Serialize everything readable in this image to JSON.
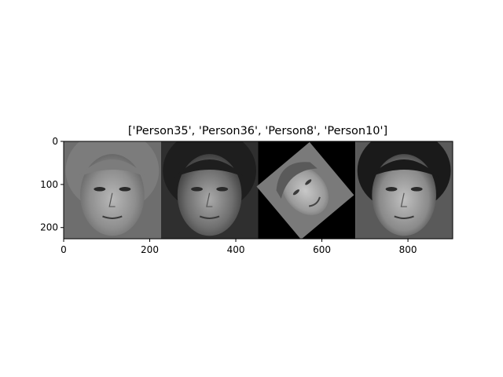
{
  "chart_data": {
    "type": "image_grid",
    "title": "['Person35', 'Person36', 'Person8', 'Person10']",
    "images": [
      {
        "label": "Person35",
        "x_range": [
          0,
          226
        ],
        "tone": "light-gray portrait, curly hair"
      },
      {
        "label": "Person36",
        "x_range": [
          226,
          452
        ],
        "tone": "dark-gray portrait, short hair"
      },
      {
        "label": "Person8",
        "x_range": [
          452,
          678
        ],
        "tone": "rotated face on black background"
      },
      {
        "label": "Person10",
        "x_range": [
          678,
          904
        ],
        "tone": "gray portrait, dark hair"
      }
    ],
    "xlim": [
      0,
      904
    ],
    "ylim": [
      226,
      0
    ],
    "xticks": [
      0,
      200,
      400,
      600,
      800
    ],
    "yticks": [
      0,
      100,
      200
    ],
    "grid": false
  },
  "colors": {
    "axis": "#000000",
    "background": "#ffffff"
  }
}
